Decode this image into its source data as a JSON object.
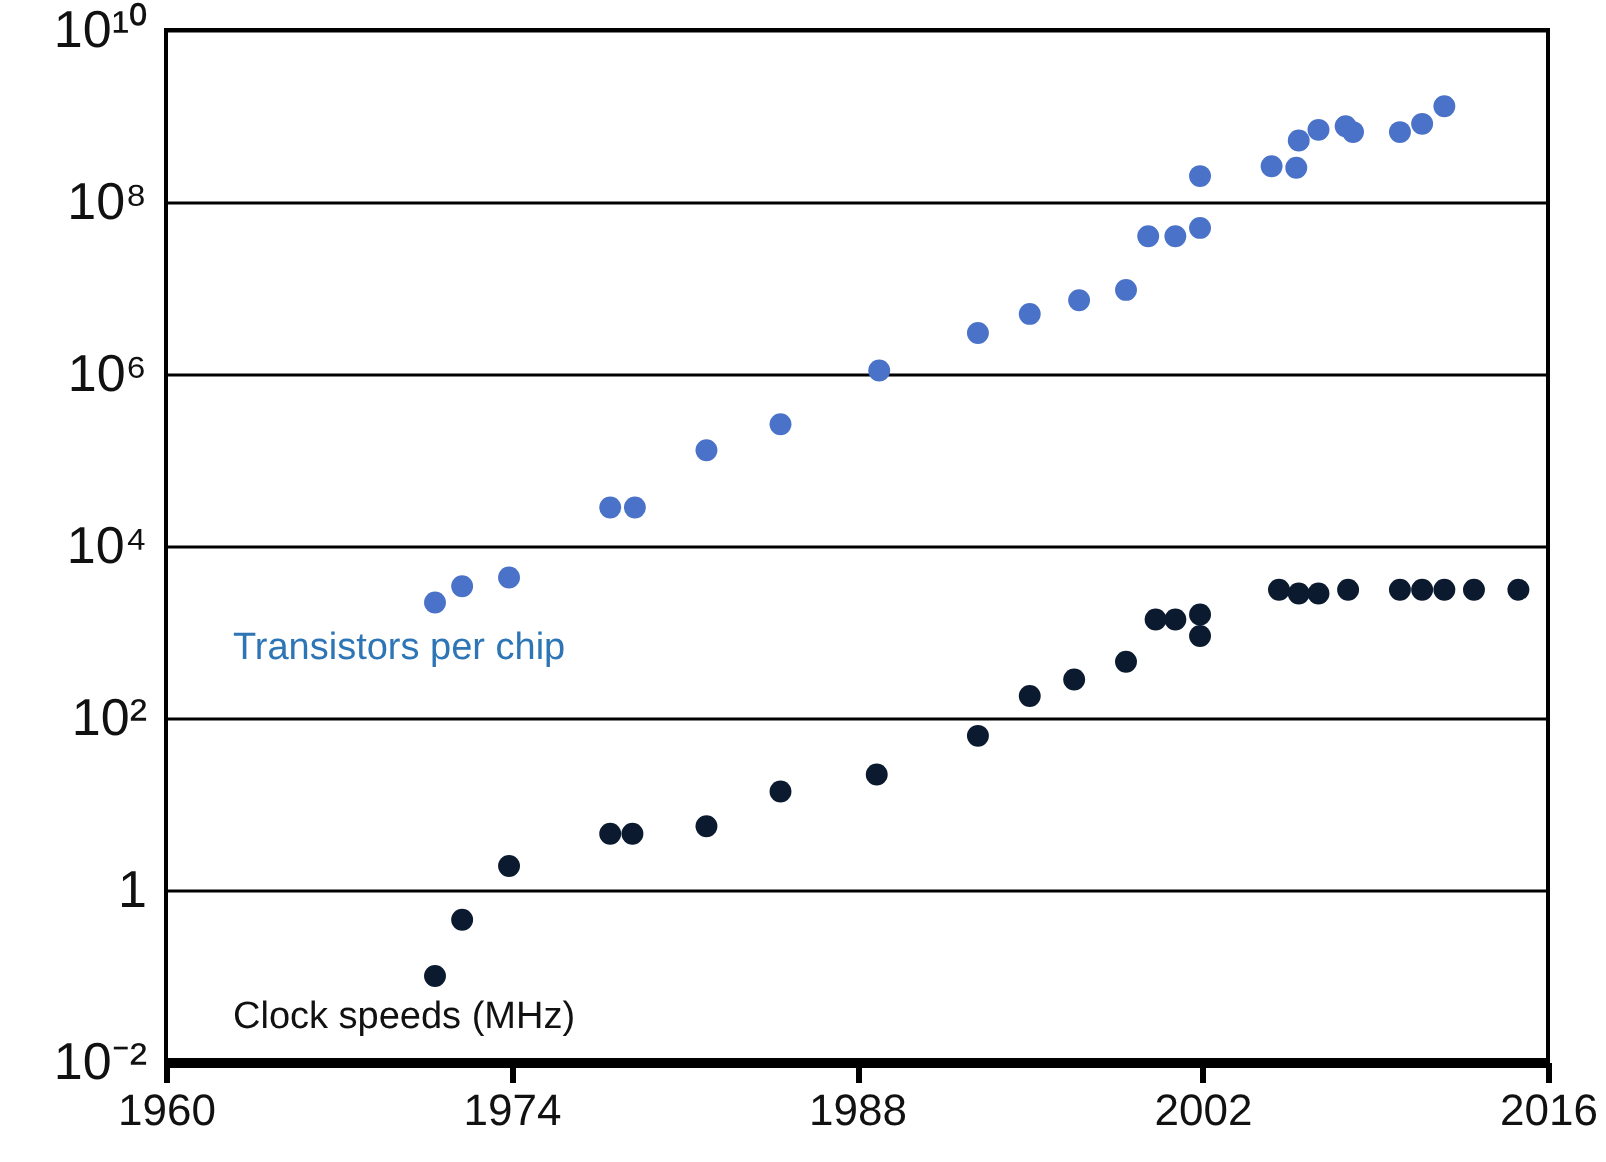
{
  "chart_data": {
    "type": "scatter",
    "series": [
      {
        "name": "Transistors per chip",
        "color": "#4a72c8",
        "x": [
          1970.9,
          1972.0,
          1973.9,
          1978.0,
          1979.0,
          1981.9,
          1984.9,
          1988.9,
          1992.9,
          1995.0,
          1997.0,
          1998.9,
          1999.8,
          2000.9,
          2001.9,
          2001.9,
          2004.8,
          2005.8,
          2005.9,
          2006.7,
          2007.8,
          2008.1,
          2010.0,
          2010.9,
          2011.8
        ],
        "values": [
          2200,
          3400,
          4300,
          28000,
          28000,
          130000,
          260000,
          1100000,
          3000000,
          5000000,
          7200000,
          9500000,
          40000000,
          40000000,
          50000000,
          200000000,
          260000000,
          250000000,
          520000000,
          690000000,
          760000000,
          650000000,
          650000000,
          810000000,
          1300000000
        ]
      },
      {
        "name": "Clock speeds (MHz)",
        "color": "#0b1a2e",
        "x": [
          1970.9,
          1972.0,
          1973.9,
          1978.0,
          1978.9,
          1981.9,
          1984.9,
          1988.8,
          1992.9,
          1995.0,
          1996.8,
          1998.9,
          2000.1,
          2000.9,
          2001.9,
          2001.9,
          2005.1,
          2005.9,
          2006.7,
          2007.9,
          2010.0,
          2010.9,
          2011.8,
          2013.0,
          2014.8
        ],
        "values": [
          0.1,
          0.45,
          1.9,
          4.5,
          4.5,
          5.5,
          14,
          22,
          62,
          180,
          280,
          450,
          1400,
          1400,
          1600,
          900,
          3100,
          2800,
          2800,
          3100,
          3100,
          3100,
          3100,
          3100,
          3100
        ]
      }
    ],
    "xlim": [
      1960,
      2016
    ],
    "xticks": [
      1960,
      1974,
      1988,
      2002,
      2016
    ],
    "ylim": [
      0.01,
      10000000000
    ],
    "yticks": [
      {
        "value": 0.01,
        "label": "10⁻²"
      },
      1,
      {
        "value": 100,
        "label": "10²"
      },
      {
        "value": 10000,
        "label": "10⁴"
      },
      {
        "value": 1000000,
        "label": "10⁶"
      },
      {
        "value": 100000000,
        "label": "10⁸"
      },
      {
        "value": 10000000000,
        "label": "10¹⁰"
      }
    ],
    "log": "y",
    "grid": "y",
    "marker": "circle"
  }
}
